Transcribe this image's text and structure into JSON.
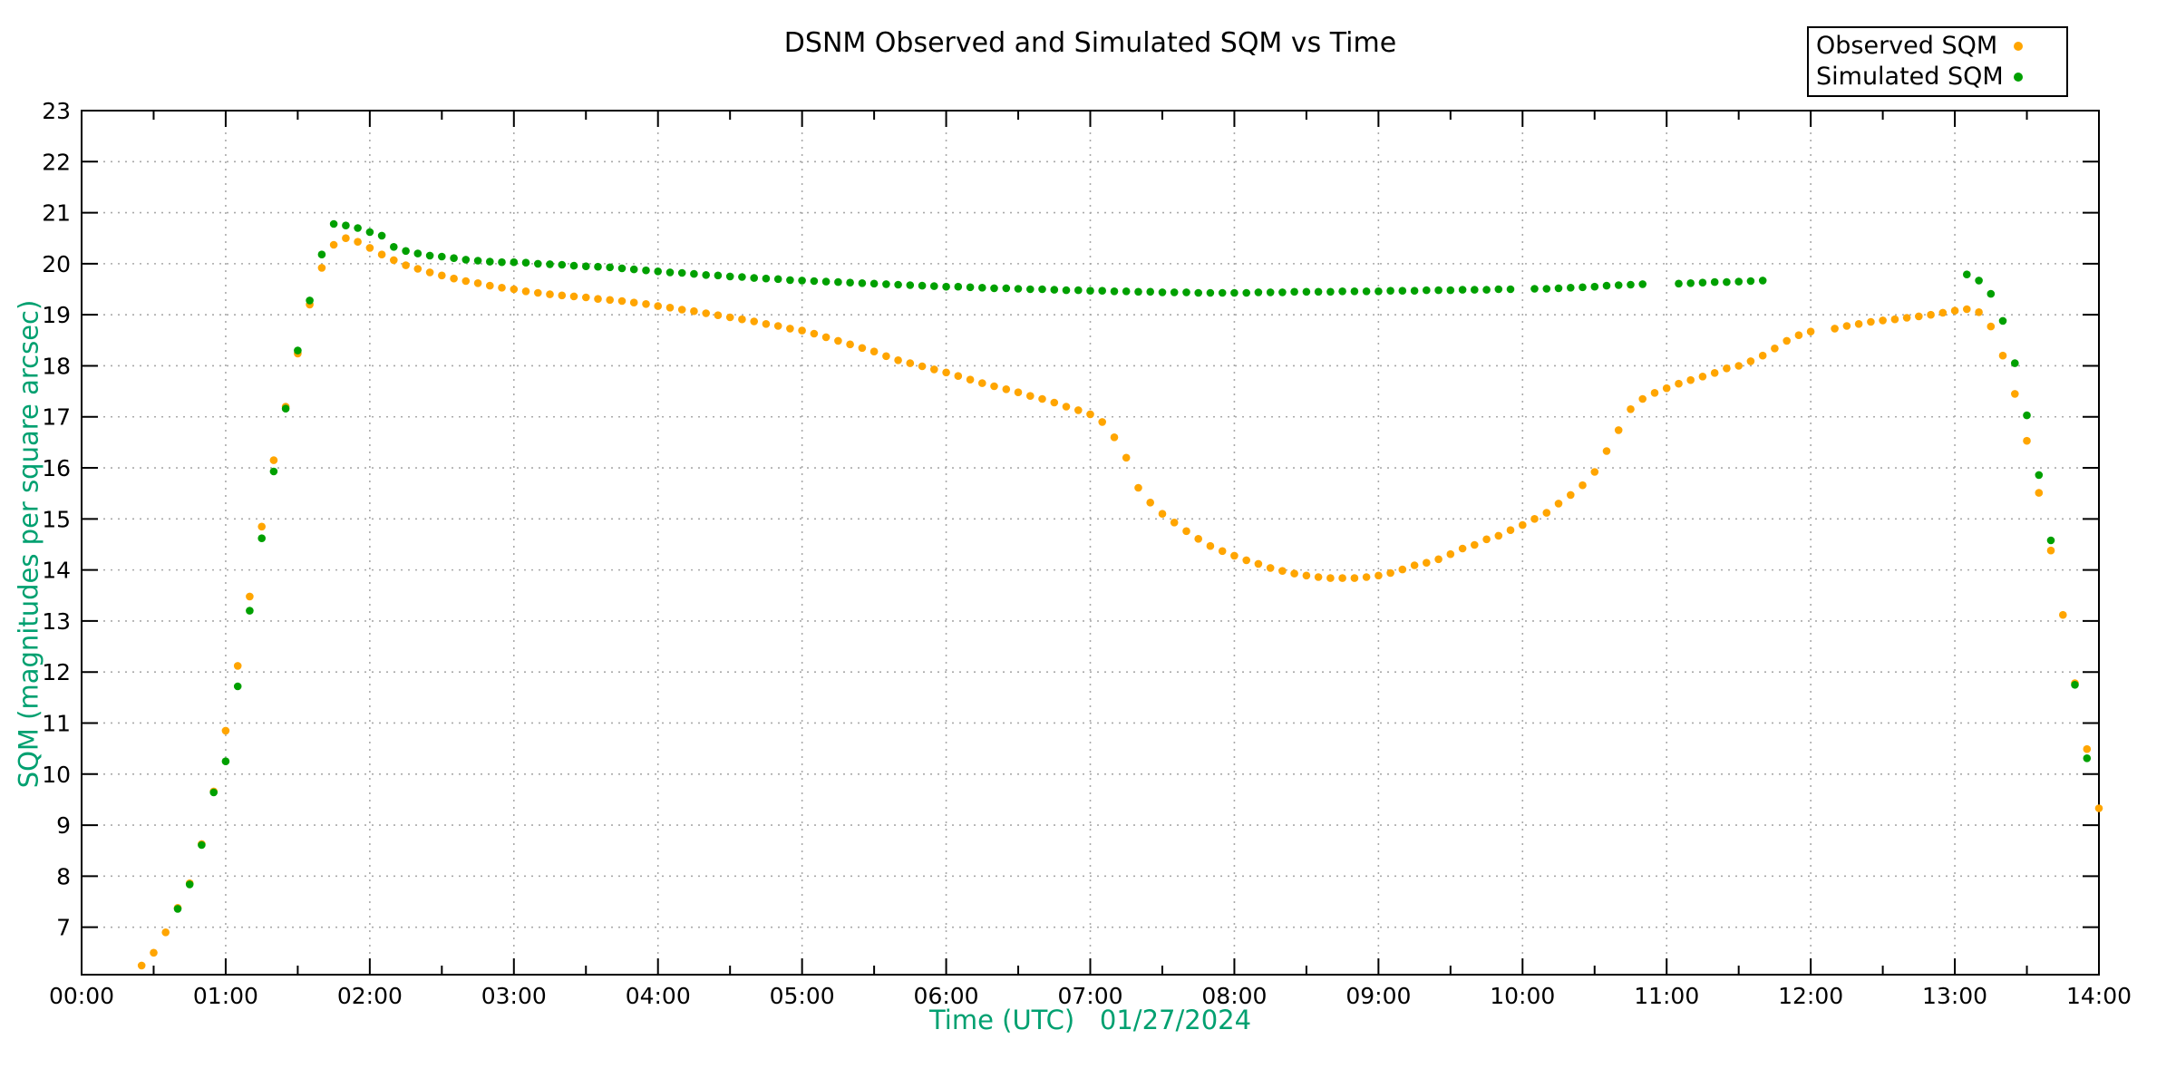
{
  "title": "DSNM Observed and Simulated SQM vs Time",
  "legend": {
    "position": "top-right-outside",
    "entries": [
      {
        "label": "Observed SQM",
        "color": "#FFA500",
        "marker": "dot"
      },
      {
        "label": "Simulated SQM",
        "color": "#00A000",
        "marker": "dot"
      }
    ]
  },
  "colors": {
    "observed": "#FFA500",
    "simulated": "#00A000",
    "axis_label_text": "#00A070",
    "grid": "#A9A9A9",
    "border": "#000000",
    "background": "#FFFFFF"
  },
  "chart_data": {
    "type": "scatter",
    "title": "DSNM Observed and Simulated SQM vs Time",
    "xlabel": "Time (UTC)   01/27/2024",
    "ylabel": "SQM (magnitudes per square arcsec)",
    "grid": true,
    "x_unit": "minutes since 00:00 UTC",
    "x_range_hours": [
      0,
      14
    ],
    "x_tick_labels": [
      "00:00",
      "01:00",
      "02:00",
      "03:00",
      "04:00",
      "05:00",
      "06:00",
      "07:00",
      "08:00",
      "09:00",
      "10:00",
      "11:00",
      "12:00",
      "13:00",
      "14:00"
    ],
    "x_minor_tick_minutes": 30,
    "ylim": [
      6.07,
      23
    ],
    "y_tick_values": [
      7,
      8,
      9,
      10,
      11,
      12,
      13,
      14,
      15,
      16,
      17,
      18,
      19,
      20,
      21,
      22,
      23
    ],
    "sample_interval_minutes": 5,
    "series": [
      {
        "name": "Observed SQM",
        "color": "#FFA500",
        "points": [
          [
            25,
            6.25
          ],
          [
            30,
            6.5
          ],
          [
            35,
            6.9
          ],
          [
            40,
            7.38
          ],
          [
            45,
            7.86
          ],
          [
            50,
            8.63
          ],
          [
            55,
            9.66
          ],
          [
            60,
            10.85
          ],
          [
            65,
            12.12
          ],
          [
            70,
            13.48
          ],
          [
            75,
            14.85
          ],
          [
            80,
            16.15
          ],
          [
            85,
            17.2
          ],
          [
            90,
            18.24
          ],
          [
            95,
            19.2
          ],
          [
            100,
            19.92
          ],
          [
            105,
            20.37
          ],
          [
            110,
            20.5
          ],
          [
            115,
            20.43
          ],
          [
            120,
            20.31
          ],
          [
            125,
            20.18
          ],
          [
            130,
            20.07
          ],
          [
            135,
            19.97
          ],
          [
            140,
            19.9
          ],
          [
            145,
            19.83
          ],
          [
            150,
            19.77
          ],
          [
            155,
            19.71
          ],
          [
            160,
            19.66
          ],
          [
            165,
            19.62
          ],
          [
            170,
            19.57
          ],
          [
            175,
            19.53
          ],
          [
            180,
            19.5
          ],
          [
            185,
            19.46
          ],
          [
            190,
            19.43
          ],
          [
            195,
            19.4
          ],
          [
            200,
            19.38
          ],
          [
            205,
            19.36
          ],
          [
            210,
            19.34
          ],
          [
            215,
            19.31
          ],
          [
            220,
            19.29
          ],
          [
            225,
            19.27
          ],
          [
            230,
            19.24
          ],
          [
            235,
            19.21
          ],
          [
            240,
            19.17
          ],
          [
            245,
            19.14
          ],
          [
            250,
            19.1
          ],
          [
            255,
            19.07
          ],
          [
            260,
            19.03
          ],
          [
            265,
            18.99
          ],
          [
            270,
            18.95
          ],
          [
            275,
            18.91
          ],
          [
            280,
            18.87
          ],
          [
            285,
            18.82
          ],
          [
            290,
            18.78
          ],
          [
            295,
            18.73
          ],
          [
            300,
            18.69
          ],
          [
            305,
            18.63
          ],
          [
            310,
            18.56
          ],
          [
            315,
            18.49
          ],
          [
            320,
            18.42
          ],
          [
            325,
            18.35
          ],
          [
            330,
            18.28
          ],
          [
            335,
            18.19
          ],
          [
            340,
            18.11
          ],
          [
            345,
            18.05
          ],
          [
            350,
            17.99
          ],
          [
            355,
            17.93
          ],
          [
            360,
            17.87
          ],
          [
            365,
            17.8
          ],
          [
            370,
            17.73
          ],
          [
            375,
            17.66
          ],
          [
            380,
            17.6
          ],
          [
            385,
            17.54
          ],
          [
            390,
            17.48
          ],
          [
            395,
            17.41
          ],
          [
            400,
            17.35
          ],
          [
            405,
            17.28
          ],
          [
            410,
            17.2
          ],
          [
            415,
            17.13
          ],
          [
            420,
            17.05
          ],
          [
            425,
            16.9
          ],
          [
            430,
            16.6
          ],
          [
            435,
            16.2
          ],
          [
            440,
            15.61
          ],
          [
            445,
            15.32
          ],
          [
            450,
            15.1
          ],
          [
            455,
            14.93
          ],
          [
            460,
            14.76
          ],
          [
            465,
            14.61
          ],
          [
            470,
            14.47
          ],
          [
            475,
            14.37
          ],
          [
            480,
            14.28
          ],
          [
            485,
            14.19
          ],
          [
            490,
            14.12
          ],
          [
            495,
            14.04
          ],
          [
            500,
            13.98
          ],
          [
            505,
            13.93
          ],
          [
            510,
            13.89
          ],
          [
            515,
            13.86
          ],
          [
            520,
            13.84
          ],
          [
            525,
            13.84
          ],
          [
            530,
            13.84
          ],
          [
            535,
            13.86
          ],
          [
            540,
            13.89
          ],
          [
            545,
            13.94
          ],
          [
            550,
            14.01
          ],
          [
            555,
            14.09
          ],
          [
            560,
            14.14
          ],
          [
            565,
            14.21
          ],
          [
            570,
            14.31
          ],
          [
            575,
            14.42
          ],
          [
            580,
            14.49
          ],
          [
            585,
            14.6
          ],
          [
            590,
            14.67
          ],
          [
            595,
            14.78
          ],
          [
            600,
            14.88
          ],
          [
            605,
            15.0
          ],
          [
            610,
            15.12
          ],
          [
            615,
            15.3
          ],
          [
            620,
            15.47
          ],
          [
            625,
            15.66
          ],
          [
            630,
            15.92
          ],
          [
            635,
            16.33
          ],
          [
            640,
            16.74
          ],
          [
            645,
            17.15
          ],
          [
            650,
            17.35
          ],
          [
            655,
            17.47
          ],
          [
            660,
            17.56
          ],
          [
            665,
            17.65
          ],
          [
            670,
            17.72
          ],
          [
            675,
            17.79
          ],
          [
            680,
            17.86
          ],
          [
            685,
            17.95
          ],
          [
            690,
            18.0
          ],
          [
            695,
            18.09
          ],
          [
            700,
            18.2
          ],
          [
            705,
            18.34
          ],
          [
            710,
            18.49
          ],
          [
            715,
            18.6
          ],
          [
            720,
            18.67
          ],
          [
            730,
            18.73
          ],
          [
            735,
            18.78
          ],
          [
            740,
            18.82
          ],
          [
            745,
            18.86
          ],
          [
            750,
            18.89
          ],
          [
            755,
            18.91
          ],
          [
            760,
            18.94
          ],
          [
            765,
            18.97
          ],
          [
            770,
            19.0
          ],
          [
            775,
            19.04
          ],
          [
            780,
            19.08
          ],
          [
            785,
            19.11
          ],
          [
            790,
            19.05
          ],
          [
            795,
            18.77
          ],
          [
            800,
            18.2
          ],
          [
            805,
            17.45
          ],
          [
            810,
            16.53
          ],
          [
            815,
            15.51
          ],
          [
            820,
            14.38
          ],
          [
            825,
            13.12
          ],
          [
            830,
            11.78
          ],
          [
            835,
            10.49
          ],
          [
            840,
            9.33
          ]
        ]
      },
      {
        "name": "Simulated SQM",
        "color": "#00A000",
        "points": [
          [
            40,
            7.36
          ],
          [
            45,
            7.84
          ],
          [
            50,
            8.61
          ],
          [
            55,
            9.64
          ],
          [
            60,
            10.25
          ],
          [
            65,
            11.72
          ],
          [
            70,
            13.2
          ],
          [
            75,
            14.62
          ],
          [
            80,
            15.93
          ],
          [
            85,
            17.16
          ],
          [
            90,
            18.3
          ],
          [
            95,
            19.28
          ],
          [
            100,
            20.18
          ],
          [
            105,
            20.78
          ],
          [
            110,
            20.75
          ],
          [
            115,
            20.7
          ],
          [
            120,
            20.62
          ],
          [
            125,
            20.55
          ],
          [
            130,
            20.33
          ],
          [
            135,
            20.25
          ],
          [
            140,
            20.2
          ],
          [
            145,
            20.16
          ],
          [
            150,
            20.14
          ],
          [
            155,
            20.11
          ],
          [
            160,
            20.08
          ],
          [
            165,
            20.06
          ],
          [
            170,
            20.04
          ],
          [
            175,
            20.03
          ],
          [
            180,
            20.03
          ],
          [
            185,
            20.02
          ],
          [
            190,
            20.0
          ],
          [
            195,
            19.99
          ],
          [
            200,
            19.98
          ],
          [
            205,
            19.96
          ],
          [
            210,
            19.95
          ],
          [
            215,
            19.94
          ],
          [
            220,
            19.93
          ],
          [
            225,
            19.91
          ],
          [
            230,
            19.89
          ],
          [
            235,
            19.87
          ],
          [
            240,
            19.85
          ],
          [
            245,
            19.83
          ],
          [
            250,
            19.82
          ],
          [
            255,
            19.8
          ],
          [
            260,
            19.78
          ],
          [
            265,
            19.77
          ],
          [
            270,
            19.75
          ],
          [
            275,
            19.74
          ],
          [
            280,
            19.72
          ],
          [
            285,
            19.71
          ],
          [
            290,
            19.7
          ],
          [
            295,
            19.68
          ],
          [
            300,
            19.67
          ],
          [
            305,
            19.66
          ],
          [
            310,
            19.65
          ],
          [
            315,
            19.64
          ],
          [
            320,
            19.63
          ],
          [
            325,
            19.62
          ],
          [
            330,
            19.61
          ],
          [
            335,
            19.6
          ],
          [
            340,
            19.59
          ],
          [
            345,
            19.58
          ],
          [
            350,
            19.57
          ],
          [
            355,
            19.56
          ],
          [
            360,
            19.55
          ],
          [
            365,
            19.55
          ],
          [
            370,
            19.54
          ],
          [
            375,
            19.53
          ],
          [
            380,
            19.52
          ],
          [
            385,
            19.52
          ],
          [
            390,
            19.51
          ],
          [
            395,
            19.5
          ],
          [
            400,
            19.5
          ],
          [
            405,
            19.49
          ],
          [
            410,
            19.48
          ],
          [
            415,
            19.48
          ],
          [
            420,
            19.47
          ],
          [
            425,
            19.47
          ],
          [
            430,
            19.46
          ],
          [
            435,
            19.46
          ],
          [
            440,
            19.45
          ],
          [
            445,
            19.45
          ],
          [
            450,
            19.44
          ],
          [
            455,
            19.44
          ],
          [
            460,
            19.44
          ],
          [
            465,
            19.43
          ],
          [
            470,
            19.43
          ],
          [
            475,
            19.43
          ],
          [
            480,
            19.43
          ],
          [
            485,
            19.43
          ],
          [
            490,
            19.44
          ],
          [
            495,
            19.44
          ],
          [
            500,
            19.44
          ],
          [
            505,
            19.45
          ],
          [
            510,
            19.45
          ],
          [
            515,
            19.45
          ],
          [
            520,
            19.45
          ],
          [
            525,
            19.46
          ],
          [
            530,
            19.46
          ],
          [
            535,
            19.46
          ],
          [
            540,
            19.46
          ],
          [
            545,
            19.47
          ],
          [
            550,
            19.47
          ],
          [
            555,
            19.47
          ],
          [
            560,
            19.48
          ],
          [
            565,
            19.48
          ],
          [
            570,
            19.48
          ],
          [
            575,
            19.49
          ],
          [
            580,
            19.49
          ],
          [
            585,
            19.49
          ],
          [
            590,
            19.5
          ],
          [
            595,
            19.5
          ],
          [
            605,
            19.51
          ],
          [
            610,
            19.51
          ],
          [
            615,
            19.52
          ],
          [
            620,
            19.53
          ],
          [
            625,
            19.54
          ],
          [
            630,
            19.55
          ],
          [
            635,
            19.57
          ],
          [
            640,
            19.58
          ],
          [
            645,
            19.59
          ],
          [
            650,
            19.6
          ],
          [
            665,
            19.61
          ],
          [
            670,
            19.62
          ],
          [
            675,
            19.63
          ],
          [
            680,
            19.64
          ],
          [
            685,
            19.64
          ],
          [
            690,
            19.65
          ],
          [
            695,
            19.66
          ],
          [
            700,
            19.67
          ],
          [
            785,
            19.79
          ],
          [
            790,
            19.67
          ],
          [
            795,
            19.41
          ],
          [
            800,
            18.88
          ],
          [
            805,
            18.05
          ],
          [
            810,
            17.03
          ],
          [
            815,
            15.86
          ],
          [
            820,
            14.58
          ],
          [
            830,
            11.75
          ],
          [
            835,
            10.31
          ]
        ]
      }
    ]
  }
}
